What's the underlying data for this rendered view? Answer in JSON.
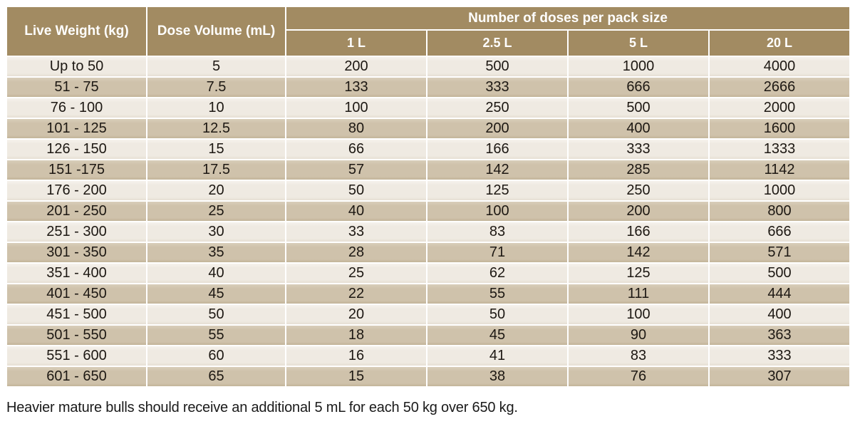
{
  "chart_data": {
    "type": "table",
    "header": {
      "live_weight": "Live Weight (kg)",
      "dose_volume": "Dose Volume (mL)",
      "doses_group": "Number of doses per pack size",
      "pack_sizes": [
        "1 L",
        "2.5 L",
        "5 L",
        "20 L"
      ]
    },
    "columns": [
      "Live Weight (kg)",
      "Dose Volume (mL)",
      "1 L",
      "2.5 L",
      "5 L",
      "20 L"
    ],
    "rows": [
      [
        "Up to 50",
        "5",
        "200",
        "500",
        "1000",
        "4000"
      ],
      [
        "51 - 75",
        "7.5",
        "133",
        "333",
        "666",
        "2666"
      ],
      [
        "76 - 100",
        "10",
        "100",
        "250",
        "500",
        "2000"
      ],
      [
        "101 - 125",
        "12.5",
        "80",
        "200",
        "400",
        "1600"
      ],
      [
        "126 - 150",
        "15",
        "66",
        "166",
        "333",
        "1333"
      ],
      [
        "151 -175",
        "17.5",
        "57",
        "142",
        "285",
        "1142"
      ],
      [
        "176 - 200",
        "20",
        "50",
        "125",
        "250",
        "1000"
      ],
      [
        "201 - 250",
        "25",
        "40",
        "100",
        "200",
        "800"
      ],
      [
        "251 - 300",
        "30",
        "33",
        "83",
        "166",
        "666"
      ],
      [
        "301 - 350",
        "35",
        "28",
        "71",
        "142",
        "571"
      ],
      [
        "351 - 400",
        "40",
        "25",
        "62",
        "125",
        "500"
      ],
      [
        "401 - 450",
        "45",
        "22",
        "55",
        "111",
        "444"
      ],
      [
        "451 - 500",
        "50",
        "20",
        "50",
        "100",
        "400"
      ],
      [
        "501 - 550",
        "55",
        "18",
        "45",
        "90",
        "363"
      ],
      [
        "551 - 600",
        "60",
        "16",
        "41",
        "83",
        "333"
      ],
      [
        "601 - 650",
        "65",
        "15",
        "38",
        "76",
        "307"
      ]
    ],
    "footnote": "Heavier mature bulls should receive an additional 5 mL for each 50 kg over 650 kg."
  },
  "colors": {
    "header_bg": "#a28b62",
    "row_dark": "#cfc2ab",
    "row_light": "#efeae2",
    "grid_line": "#ffffff",
    "cell_text": "#1d1813",
    "header_text": "#ffffff",
    "footnote_text": "#1a1a1a"
  }
}
